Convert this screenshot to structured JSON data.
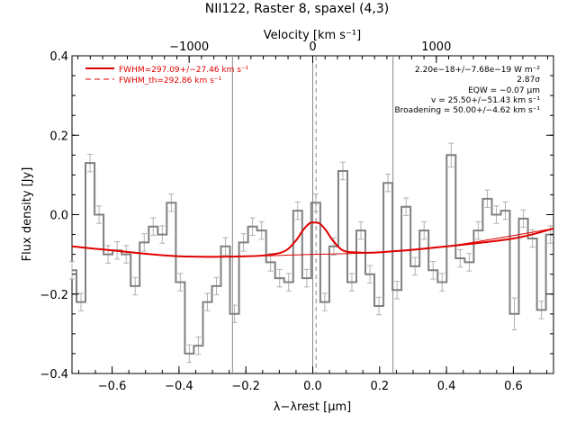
{
  "chart_data": {
    "type": "step",
    "title": "NII122, Raster 8, spaxel (4,3)",
    "xlabel": "λ−λrest [μm]",
    "ylabel": "Flux density [Jy]",
    "top_xlabel": "Velocity [km s⁻¹]",
    "xlim": [
      -0.72,
      0.72
    ],
    "ylim": [
      -0.4,
      0.4
    ],
    "top_xlim": [
      -1948,
      1948
    ],
    "xticks": [
      -0.6,
      -0.4,
      -0.2,
      0.0,
      0.2,
      0.4,
      0.6
    ],
    "xtick_labels": [
      "−0.6",
      "−0.4",
      "−0.2",
      "0.0",
      "0.2",
      "0.4",
      "0.6"
    ],
    "yticks": [
      -0.4,
      -0.2,
      0.0,
      0.2,
      0.4
    ],
    "ytick_labels": [
      "−0.4",
      "−0.2",
      "0.0",
      "0.2",
      "0.4"
    ],
    "top_xticks": [
      -1000,
      0,
      1000
    ],
    "top_xtick_labels": [
      "−1000",
      "0",
      "1000"
    ],
    "legend": [
      {
        "label": "FWHM=297.09+/−27.46 km s⁻¹",
        "style": "solid",
        "color": "#e00000"
      },
      {
        "label": "FWHM_th=292.86 km s⁻¹",
        "style": "dashed",
        "color": "#e00000"
      }
    ],
    "annotations": [
      "2.20e−18+/−7.68e−19 W m⁻²",
      "2.87σ",
      "EQW = −0.07 μm",
      "v = 25.50+/−51.43 km s⁻¹",
      "Broadening = 50.00+/−4.62 km s⁻¹"
    ],
    "vertical_lines": [
      {
        "x": -0.24,
        "style": "solid",
        "color": "#888888"
      },
      {
        "x": 0.0,
        "style": "solid",
        "color": "#888888"
      },
      {
        "x": 0.01,
        "style": "dashed",
        "color": "#888888"
      },
      {
        "x": 0.24,
        "style": "solid",
        "color": "#888888"
      }
    ],
    "spectrum": {
      "x": [
        -0.72,
        -0.693,
        -0.666,
        -0.639,
        -0.612,
        -0.585,
        -0.558,
        -0.531,
        -0.504,
        -0.477,
        -0.45,
        -0.423,
        -0.396,
        -0.369,
        -0.342,
        -0.315,
        -0.288,
        -0.261,
        -0.234,
        -0.207,
        -0.18,
        -0.153,
        -0.126,
        -0.099,
        -0.072,
        -0.045,
        -0.018,
        0.009,
        0.036,
        0.063,
        0.09,
        0.117,
        0.144,
        0.171,
        0.198,
        0.225,
        0.252,
        0.279,
        0.306,
        0.333,
        0.36,
        0.387,
        0.414,
        0.441,
        0.468,
        0.495,
        0.522,
        0.549,
        0.576,
        0.603,
        0.63,
        0.657,
        0.684,
        0.711
      ],
      "y": [
        -0.14,
        -0.22,
        0.13,
        0.0,
        -0.1,
        -0.09,
        -0.1,
        -0.18,
        -0.07,
        -0.03,
        -0.05,
        0.03,
        -0.17,
        -0.35,
        -0.33,
        -0.22,
        -0.18,
        -0.08,
        -0.25,
        -0.07,
        -0.03,
        -0.04,
        -0.12,
        -0.16,
        -0.17,
        0.01,
        -0.16,
        0.03,
        -0.22,
        -0.08,
        0.11,
        -0.17,
        -0.04,
        -0.15,
        -0.23,
        0.08,
        -0.19,
        0.02,
        -0.13,
        -0.04,
        -0.14,
        -0.17,
        0.15,
        -0.11,
        -0.12,
        -0.04,
        0.04,
        -0.0,
        0.01,
        -0.25,
        -0.01,
        -0.06,
        -0.24,
        -0.05
      ],
      "err": [
        0.022,
        0.022,
        0.022,
        0.022,
        0.022,
        0.022,
        0.022,
        0.022,
        0.022,
        0.022,
        0.022,
        0.022,
        0.022,
        0.022,
        0.022,
        0.022,
        0.022,
        0.022,
        0.022,
        0.022,
        0.022,
        0.022,
        0.022,
        0.022,
        0.022,
        0.022,
        0.022,
        0.022,
        0.022,
        0.022,
        0.022,
        0.022,
        0.022,
        0.022,
        0.022,
        0.022,
        0.022,
        0.022,
        0.022,
        0.022,
        0.022,
        0.022,
        0.03,
        0.022,
        0.022,
        0.022,
        0.022,
        0.022,
        0.022,
        0.04,
        0.022,
        0.022,
        0.022,
        0.022
      ],
      "color": "#808080"
    },
    "fit": {
      "x": [
        -0.72,
        -0.6,
        -0.4,
        -0.2,
        -0.12,
        -0.08,
        -0.05,
        -0.03,
        -0.01,
        0.0,
        0.02,
        0.04,
        0.06,
        0.09,
        0.13,
        0.2,
        0.4,
        0.6,
        0.72
      ],
      "y": [
        -0.08,
        -0.09,
        -0.105,
        -0.105,
        -0.1,
        -0.09,
        -0.065,
        -0.04,
        -0.022,
        -0.02,
        -0.022,
        -0.04,
        -0.065,
        -0.09,
        -0.095,
        -0.095,
        -0.08,
        -0.06,
        -0.035
      ],
      "color": "#e00000"
    },
    "continuum": {
      "x": [
        -0.72,
        -0.4,
        -0.2,
        0.0,
        0.2,
        0.4,
        0.72
      ],
      "y": [
        -0.08,
        -0.105,
        -0.105,
        -0.1,
        -0.095,
        -0.08,
        -0.035
      ],
      "color": "#e00000"
    }
  }
}
